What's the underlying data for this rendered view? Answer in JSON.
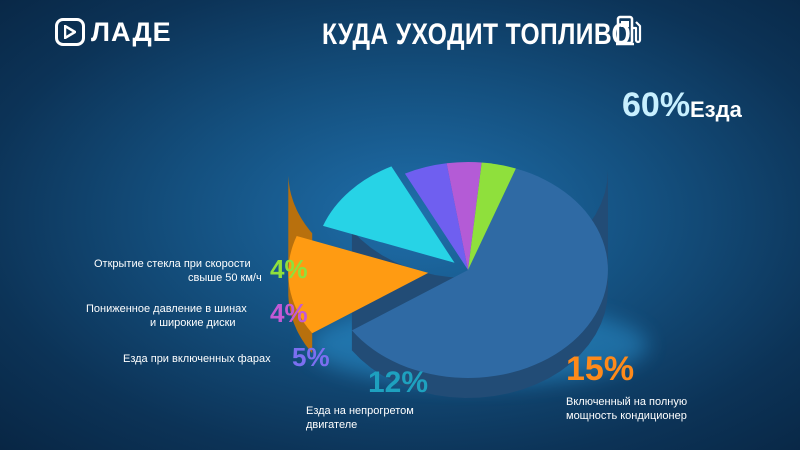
{
  "header": {
    "brand": "ЛАДЕ",
    "title": "КУДА УХОДИТ ТОПЛИВО",
    "icon": "fuel-pump-icon"
  },
  "chart_data": {
    "type": "pie",
    "title": "КУДА УХОДИТ ТОПЛИВО",
    "slices": [
      {
        "key": "driving",
        "label": "Езда",
        "value": 60,
        "pct_text": "60%",
        "color": "#2f6aa4"
      },
      {
        "key": "ac",
        "label": "Включенный на полную мощность кондиционер",
        "label_lines": [
          "Включенный на полную",
          "мощность кондиционер"
        ],
        "value": 15,
        "pct_text": "15%",
        "color": "#ff9b12"
      },
      {
        "key": "cold_engine",
        "label": "Езда на непрогретом двигателе",
        "label_lines": [
          "Езда на непрогретом",
          "двигателе"
        ],
        "value": 12,
        "pct_text": "12%",
        "color": "#27d3e6"
      },
      {
        "key": "headlights",
        "label": "Езда при включенных фарах",
        "label_lines": [
          "Езда при включенных фарах"
        ],
        "value": 5,
        "pct_text": "5%",
        "color": "#6f5ff0"
      },
      {
        "key": "tires",
        "label": "Пониженное давление в шинах и широкие диски",
        "label_lines": [
          "Пониженное давление в шинах",
          "и широкие диски"
        ],
        "value": 4,
        "pct_text": "4%",
        "color": "#b45bd6"
      },
      {
        "key": "windows",
        "label": "Открытие стекла при скорости свыше 50 км/ч",
        "label_lines": [
          "Открытие стекла при скорости",
          "свыше 50 км/ч"
        ],
        "value": 4,
        "pct_text": "4%",
        "color": "#8fe03c"
      }
    ]
  }
}
